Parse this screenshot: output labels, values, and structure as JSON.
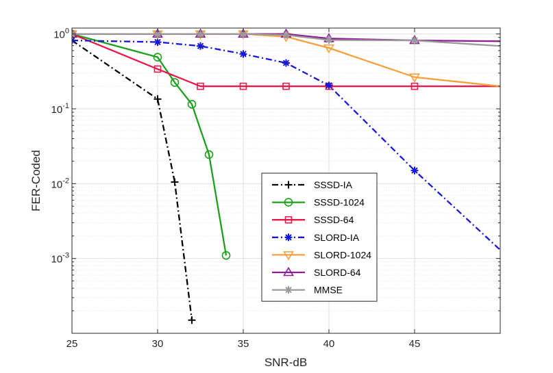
{
  "chart_data": {
    "type": "line",
    "title": "",
    "xlabel": "SNR-dB",
    "ylabel": "FER-Coded",
    "xscale": "linear",
    "yscale": "log",
    "xlim": [
      25,
      50
    ],
    "ylim": [
      0.0001,
      1.2
    ],
    "grid": true,
    "minor_grid": true,
    "legend_position": "inside lower-middle",
    "x_ticks": [
      25,
      30,
      35,
      40,
      45
    ],
    "x_tick_labels": [
      "25",
      "30",
      "35",
      "40",
      "45"
    ],
    "y_ticks": [
      1,
      0.1,
      0.01,
      0.001
    ],
    "y_tick_labels": [
      {
        "base": "10",
        "exp": "0"
      },
      {
        "base": "10",
        "exp": "-1"
      },
      {
        "base": "10",
        "exp": "-2"
      },
      {
        "base": "10",
        "exp": "-3"
      }
    ],
    "series": [
      {
        "name": "SSSD-IA",
        "color": "#000000",
        "dash": "9,4,2,4",
        "marker": "plus",
        "x": [
          25,
          30,
          31,
          32
        ],
        "values": [
          0.82,
          0.135,
          0.0105,
          0.00015
        ]
      },
      {
        "name": "SSSD-1024",
        "color": "#1aa01a",
        "dash": "",
        "marker": "circle",
        "x": [
          25,
          30,
          31,
          32,
          33,
          34
        ],
        "values": [
          1.0,
          0.49,
          0.225,
          0.115,
          0.0245,
          0.0011
        ]
      },
      {
        "name": "SSSD-64",
        "color": "#e8194a",
        "dash": "",
        "marker": "square",
        "x": [
          25,
          30,
          32.5,
          35,
          37.5,
          40,
          45,
          50
        ],
        "values": [
          1.0,
          0.34,
          0.2,
          0.2,
          0.2,
          0.2,
          0.2,
          0.2
        ]
      },
      {
        "name": "SLORD-IA",
        "color": "#1616dc",
        "dash": "9,4,2,4",
        "marker": "asterisk",
        "x": [
          25,
          30,
          32.5,
          35,
          37.5,
          40,
          45,
          50
        ],
        "values": [
          0.82,
          0.78,
          0.69,
          0.54,
          0.41,
          0.205,
          0.015,
          0.0013
        ]
      },
      {
        "name": "SLORD-1024",
        "color": "#f7a03b",
        "dash": "",
        "marker": "triangle-down",
        "x": [
          25,
          30,
          32.5,
          35,
          37.5,
          40,
          45,
          50
        ],
        "values": [
          1.0,
          1.0,
          1.0,
          1.0,
          0.92,
          0.65,
          0.265,
          0.2
        ]
      },
      {
        "name": "SLORD-64",
        "color": "#8e1a96",
        "dash": "",
        "marker": "triangle-up",
        "x": [
          25,
          30,
          32.5,
          35,
          37.5,
          40,
          45,
          50
        ],
        "values": [
          1.0,
          1.0,
          1.0,
          1.0,
          1.0,
          0.87,
          0.82,
          0.8
        ]
      },
      {
        "name": "MMSE",
        "color": "#9a9a9a",
        "dash": "",
        "marker": "asterisk",
        "x": [
          25,
          30,
          32.5,
          35,
          37.5,
          40,
          45,
          50
        ],
        "values": [
          1.0,
          1.0,
          1.0,
          1.0,
          0.97,
          0.83,
          0.82,
          0.69
        ]
      }
    ]
  }
}
